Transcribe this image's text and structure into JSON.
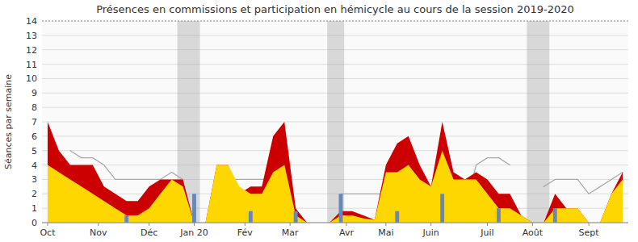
{
  "chart_data": {
    "type": "area",
    "title": "Présences en commissions et participation en hémicycle au cours de la session 2019-2020",
    "y_label": "Séances par semaine",
    "x": [
      0,
      1,
      2,
      3,
      4,
      5,
      6,
      7,
      8,
      9,
      10,
      11,
      12,
      13,
      14,
      15,
      16,
      17,
      18,
      19,
      20,
      21,
      22,
      23,
      24,
      25,
      26,
      27,
      28,
      29,
      30,
      31,
      32,
      33,
      34,
      35,
      36,
      37,
      38,
      39,
      40,
      41,
      42,
      43,
      44,
      45,
      46,
      47,
      48,
      49,
      50,
      51
    ],
    "xlim": [
      -0.5,
      51.5
    ],
    "xticks": [
      {
        "value": 0,
        "label": "Oct"
      },
      {
        "value": 4.5,
        "label": "Nov"
      },
      {
        "value": 9,
        "label": "Déc"
      },
      {
        "value": 13,
        "label": "Jan 20"
      },
      {
        "value": 17.5,
        "label": "Fév"
      },
      {
        "value": 21.5,
        "label": "Mar"
      },
      {
        "value": 26.5,
        "label": "Avr"
      },
      {
        "value": 30,
        "label": "Mai"
      },
      {
        "value": 34,
        "label": "Juin"
      },
      {
        "value": 39,
        "label": "Juil"
      },
      {
        "value": 43,
        "label": "Août"
      },
      {
        "value": 48,
        "label": "Sept"
      }
    ],
    "ylim": [
      0,
      14
    ],
    "yticks": [
      0,
      1,
      2,
      3,
      4,
      5,
      6,
      7,
      8,
      9,
      10,
      11,
      12,
      13,
      14
    ],
    "grid": true,
    "bands": {
      "color": "#999999",
      "ranges": [
        [
          11.5,
          13.5
        ],
        [
          24.8,
          26.3
        ],
        [
          42.5,
          44.5
        ]
      ]
    },
    "series": [
      {
        "type": "line",
        "color": "#aaaaaa",
        "values": [
          null,
          null,
          5.0,
          4.5,
          4.5,
          4.0,
          3.0,
          3.0,
          3.0,
          3.0,
          3.0,
          3.5,
          3.0,
          null,
          null,
          2.5,
          3.0,
          3.0,
          3.0,
          3.0,
          3.0,
          2.5,
          null,
          null,
          null,
          null,
          2.0,
          2.0,
          2.0,
          2.0,
          2.0,
          2.0,
          2.0,
          2.0,
          2.0,
          2.0,
          1.5,
          1.0,
          4.0,
          4.5,
          4.5,
          4.0,
          null,
          null,
          2.5,
          3.0,
          3.0,
          3.0,
          2.0,
          2.5,
          3.0,
          3.5
        ]
      },
      {
        "type": "area",
        "color": "#CC0000",
        "values": [
          7.0,
          5.0,
          4.0,
          4.0,
          4.0,
          2.5,
          2.0,
          1.5,
          1.5,
          2.5,
          3.0,
          3.0,
          3.0,
          0.0,
          0.0,
          4.0,
          4.0,
          2.0,
          2.5,
          2.5,
          6.0,
          7.0,
          1.0,
          0.0,
          0.0,
          0.0,
          0.8,
          0.8,
          0.5,
          0.2,
          4.0,
          5.5,
          6.0,
          4.0,
          2.5,
          7.0,
          3.5,
          3.0,
          3.5,
          3.0,
          2.0,
          2.0,
          0.5,
          0.0,
          0.0,
          2.0,
          1.0,
          1.0,
          0.0,
          0.0,
          2.0,
          3.5
        ]
      },
      {
        "type": "area",
        "color": "#FFD700",
        "values": [
          4.0,
          3.5,
          3.0,
          2.5,
          2.0,
          1.5,
          1.0,
          0.5,
          0.5,
          1.0,
          2.0,
          3.0,
          2.5,
          0.0,
          0.0,
          4.0,
          4.0,
          2.5,
          2.0,
          2.0,
          3.5,
          4.0,
          0.5,
          0.0,
          0.0,
          0.0,
          0.5,
          0.5,
          0.3,
          0.2,
          3.5,
          3.5,
          4.0,
          3.0,
          2.5,
          5.0,
          3.0,
          3.0,
          3.0,
          2.0,
          1.0,
          1.0,
          0.5,
          0.0,
          0.0,
          1.0,
          1.0,
          1.0,
          0.0,
          0.0,
          2.0,
          3.0
        ]
      },
      {
        "type": "bar",
        "color": "#6688BB",
        "x": [
          7,
          13,
          18,
          22,
          26,
          31,
          35,
          40,
          45
        ],
        "values": [
          0.5,
          2.0,
          0.8,
          0.8,
          2.0,
          0.8,
          2.0,
          1.0,
          1.0
        ]
      }
    ]
  }
}
